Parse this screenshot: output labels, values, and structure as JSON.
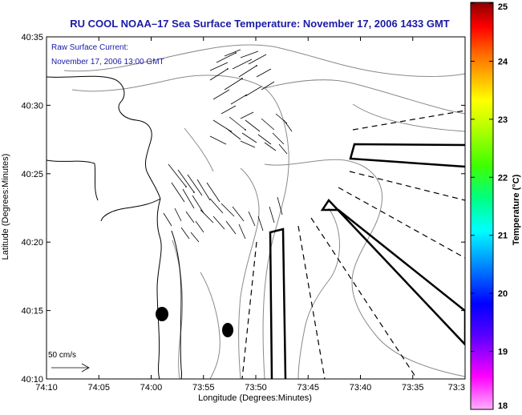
{
  "title": "RU COOL  NOAA–17  Sea Surface Temperature:  November 17, 2006 1433 GMT",
  "annotation": {
    "line1": "Raw Surface Current:",
    "line2": "November 17, 2006 13:00 GMT"
  },
  "scale_label": "50 cm/s",
  "x_axis": {
    "label": "Longitude (Degrees:Minutes)",
    "ticks": [
      "74:10",
      "74:05",
      "74:00",
      "73:55",
      "73:50",
      "73:45",
      "73:40",
      "73:35",
      "73:3"
    ]
  },
  "y_axis": {
    "label": "Latitude (Degrees:Minutes)",
    "ticks": [
      "40:35",
      "40:30",
      "40:25",
      "40:20",
      "40:15",
      "40:10"
    ]
  },
  "colorbar": {
    "label": "Temperature (°C)",
    "ticks": [
      "25",
      "24",
      "23",
      "22",
      "21",
      "20",
      "19",
      "18"
    ],
    "colors": [
      "#8b0000",
      "#ff0000",
      "#ff8c00",
      "#ffff00",
      "#00ff00",
      "#00ffff",
      "#0000ff",
      "#ff00ff"
    ]
  }
}
